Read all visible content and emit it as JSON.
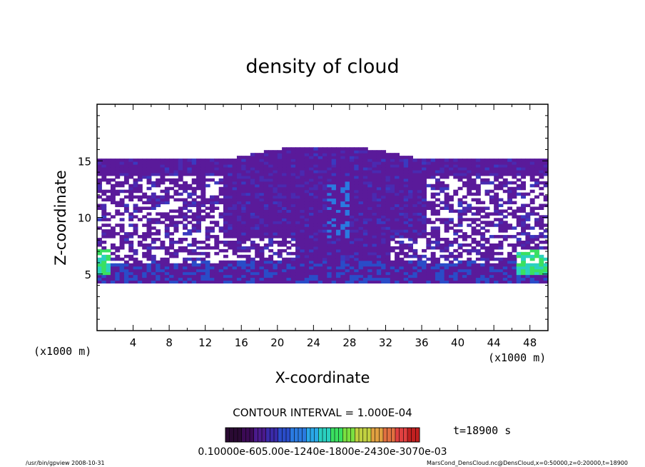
{
  "chart_data": {
    "type": "heatmap",
    "title": "density of cloud",
    "xlabel": "X-coordinate",
    "ylabel": "Z-coordinate",
    "x_unit": "(x1000 m)",
    "x_unit_right": "(x1000 m)",
    "xlim": [
      0,
      50
    ],
    "ylim": [
      0,
      20
    ],
    "xticks": [
      4,
      8,
      12,
      16,
      20,
      24,
      28,
      32,
      36,
      40,
      44,
      48
    ],
    "yticks": [
      5,
      10,
      15
    ],
    "contour_interval": "CONTOUR INTERVAL = 1.000E-04",
    "time_label": "t=18900 s",
    "colorbar_labels": "0.10000e-605.00e-1240e-1800e-2430e-3070e-03",
    "colorbar_colors": [
      "#2a0a33",
      "#3b0a55",
      "#4b1a8c",
      "#3a2aa8",
      "#2a4cc8",
      "#2a7ae0",
      "#2aa8e8",
      "#2ad0c0",
      "#3ae060",
      "#7ae040",
      "#c0d040",
      "#e0a040",
      "#e07040",
      "#e04040",
      "#c02020"
    ],
    "field": {
      "cloud_layer_z": [
        4.2,
        15.0
      ],
      "dome_x": [
        14,
        36
      ],
      "dome_top_z": 16.2,
      "max_value": 0.001,
      "min_value": 0.0001
    },
    "footer_left": "/usr/bin/gpview   2008-10-31",
    "footer_right": "MarsCond_DensCloud.nc@DensCloud,x=0:50000,z=0:20000,t=18900"
  }
}
